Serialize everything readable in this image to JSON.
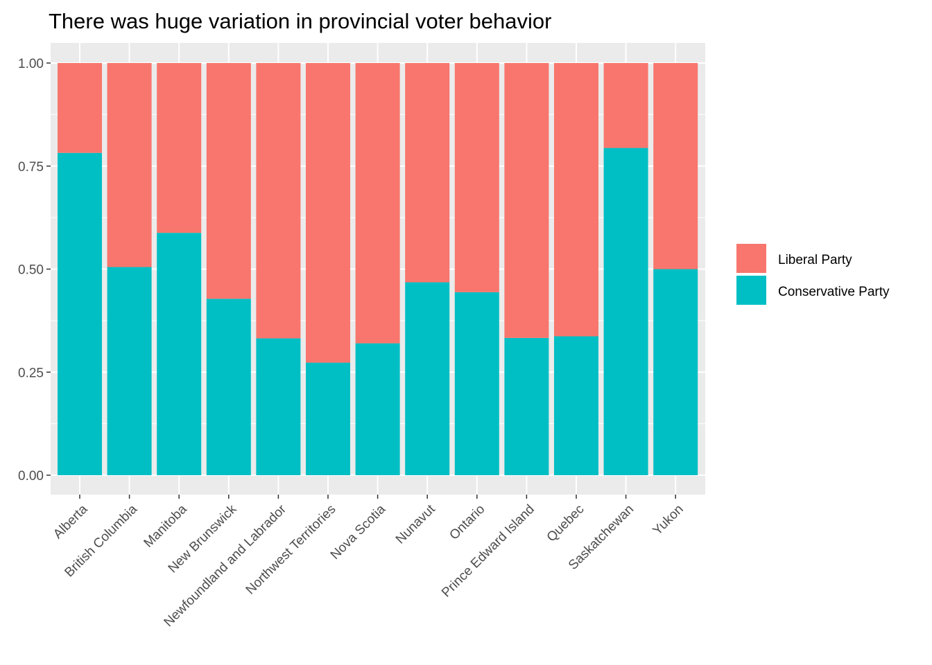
{
  "chart_data": {
    "type": "bar",
    "stacked": true,
    "title": "There was huge variation in provincial voter behavior",
    "xlabel": "",
    "ylabel": "",
    "ylim": [
      0,
      1
    ],
    "yticks": [
      "0.00",
      "0.25",
      "0.50",
      "0.75",
      "1.00"
    ],
    "ytick_values": [
      0,
      0.25,
      0.5,
      0.75,
      1
    ],
    "grid": true,
    "legend_position": "right",
    "categories": [
      "Alberta",
      "British Columbia",
      "Manitoba",
      "New Brunswick",
      "Newfoundland and Labrador",
      "Northwest Territories",
      "Nova Scotia",
      "Nunavut",
      "Ontario",
      "Prince Edward Island",
      "Quebec",
      "Saskatchewan",
      "Yukon"
    ],
    "series": [
      {
        "name": "Liberal Party",
        "color": "#F8766D",
        "values": [
          0.218,
          0.495,
          0.412,
          0.572,
          0.668,
          0.727,
          0.68,
          0.532,
          0.556,
          0.667,
          0.663,
          0.206,
          0.5
        ]
      },
      {
        "name": "Conservative Party",
        "color": "#00BFC4",
        "values": [
          0.782,
          0.505,
          0.588,
          0.428,
          0.332,
          0.273,
          0.32,
          0.468,
          0.444,
          0.333,
          0.337,
          0.794,
          0.5
        ]
      }
    ]
  }
}
